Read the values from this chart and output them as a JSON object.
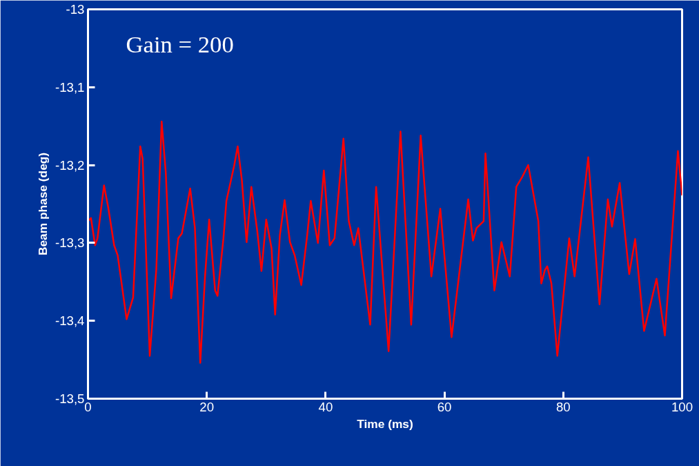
{
  "chart_data": {
    "type": "line",
    "xlabel": "Time (ms)",
    "ylabel": "Beam phase (deg)",
    "annotations": [
      "Gain = 200"
    ],
    "xlim": [
      0,
      100
    ],
    "ylim": [
      -13.5,
      -13
    ],
    "xticks": [
      0,
      20,
      40,
      60,
      80,
      100
    ],
    "yticks": [
      {
        "value": -13.5,
        "label": "-13,5"
      },
      {
        "value": -13.4,
        "label": "-13,4"
      },
      {
        "value": -13.3,
        "label": "-13,3"
      },
      {
        "value": -13.2,
        "label": "-13,2"
      },
      {
        "value": -13.1,
        "label": "-13,1"
      },
      {
        "value": -13,
        "label": "-13"
      }
    ],
    "grid": false,
    "marker": "none",
    "line_style": "solid",
    "series": [
      {
        "color": "#ff0000",
        "x": [
          0,
          0.5,
          1.2,
          1.6,
          2.7,
          3.4,
          4.4,
          5.0,
          6.5,
          7.6,
          8.8,
          9.2,
          10.4,
          11.5,
          12.4,
          13.1,
          14.0,
          15.2,
          15.8,
          17.2,
          18.0,
          18.9,
          19.7,
          20.4,
          21.4,
          21.8,
          22.8,
          23.3,
          24.6,
          25.2,
          25.9,
          26.7,
          27.5,
          28.5,
          29.2,
          30.0,
          30.9,
          31.5,
          32.3,
          33.1,
          34.0,
          34.8,
          35.9,
          36.9,
          37.5,
          38.7,
          39.7,
          40.7,
          41.5,
          43.0,
          43.9,
          44.8,
          45.5,
          47.5,
          48.5,
          50.6,
          52.6,
          54.4,
          56.0,
          57.8,
          59.3,
          61.2,
          64.0,
          64.8,
          65.4,
          66.6,
          66.9,
          68.4,
          69.6,
          71.0,
          72.1,
          73.1,
          74.1,
          75.8,
          76.3,
          76.9,
          77.3,
          78.0,
          79.0,
          81.0,
          81.9,
          82.6,
          84.2,
          86.1,
          87.5,
          88.2,
          89.5,
          91.1,
          92.1,
          93.6,
          95.7,
          97.1,
          99.3,
          100
        ],
        "values": [
          -13.272,
          -13.268,
          -13.303,
          -13.294,
          -13.226,
          -13.254,
          -13.303,
          -13.316,
          -13.398,
          -13.37,
          -13.176,
          -13.192,
          -13.445,
          -13.334,
          -13.144,
          -13.21,
          -13.371,
          -13.294,
          -13.288,
          -13.23,
          -13.281,
          -13.454,
          -13.343,
          -13.27,
          -13.361,
          -13.368,
          -13.294,
          -13.246,
          -13.201,
          -13.176,
          -13.219,
          -13.299,
          -13.228,
          -13.285,
          -13.336,
          -13.27,
          -13.307,
          -13.392,
          -13.29,
          -13.245,
          -13.299,
          -13.316,
          -13.354,
          -13.29,
          -13.246,
          -13.3,
          -13.207,
          -13.303,
          -13.294,
          -13.166,
          -13.272,
          -13.303,
          -13.281,
          -13.405,
          -13.228,
          -13.439,
          -13.157,
          -13.405,
          -13.162,
          -13.343,
          -13.256,
          -13.421,
          -13.244,
          -13.297,
          -13.281,
          -13.272,
          -13.185,
          -13.361,
          -13.299,
          -13.343,
          -13.228,
          -13.215,
          -13.2,
          -13.272,
          -13.352,
          -13.335,
          -13.33,
          -13.352,
          -13.445,
          -13.294,
          -13.343,
          -13.297,
          -13.19,
          -13.379,
          -13.244,
          -13.279,
          -13.223,
          -13.34,
          -13.295,
          -13.413,
          -13.346,
          -13.419,
          -13.182,
          -13.239
        ]
      }
    ]
  }
}
